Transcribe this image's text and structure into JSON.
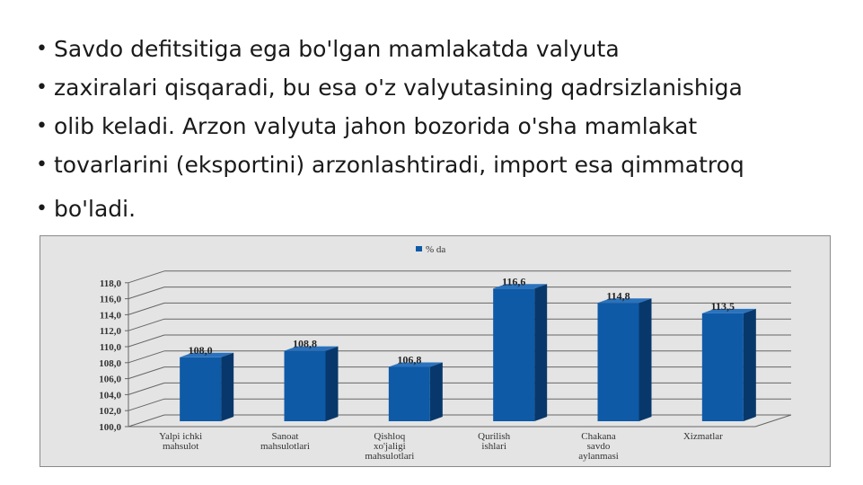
{
  "bullets": [
    "Savdo defitsitiga ega bo'lgan mamlakatda valyuta",
    "zaxiralari qisqaradi, bu esa o'z valyutasining qadrsizlanishiga",
    "olib keladi. Arzon valyuta jahon bozorida o'sha mamlakat",
    "tovarlarini (eksportini) arzonlashtiradi, import esa qimmatroq",
    "bo'ladi."
  ],
  "chart_data": {
    "type": "bar",
    "style": "3d-column",
    "categories": [
      [
        "Yalpi ichki",
        "mahsulot"
      ],
      [
        "Sanoat",
        "mahsulotlari"
      ],
      [
        "Qishloq",
        "xo'jaligi",
        "mahsulotlari"
      ],
      [
        "Qurilish",
        "ishlari"
      ],
      [
        "Chakana",
        "savdo",
        "aylanmasi"
      ],
      [
        "Xizmatlar"
      ]
    ],
    "series": [
      {
        "name": "% da",
        "values": [
          108.0,
          108.8,
          106.8,
          116.6,
          114.8,
          113.5
        ],
        "color": "#0e5aa7"
      }
    ],
    "value_labels": [
      "108,0",
      "108,8",
      "106,8",
      "116,6",
      "114,8",
      "113,5"
    ],
    "yticks": [
      "100,0",
      "102,0",
      "104,0",
      "106,0",
      "108,0",
      "110,0",
      "112,0",
      "114,0",
      "116,0",
      "118,0"
    ],
    "ylim": [
      100,
      118
    ],
    "grid": true,
    "legend": "top-center"
  }
}
